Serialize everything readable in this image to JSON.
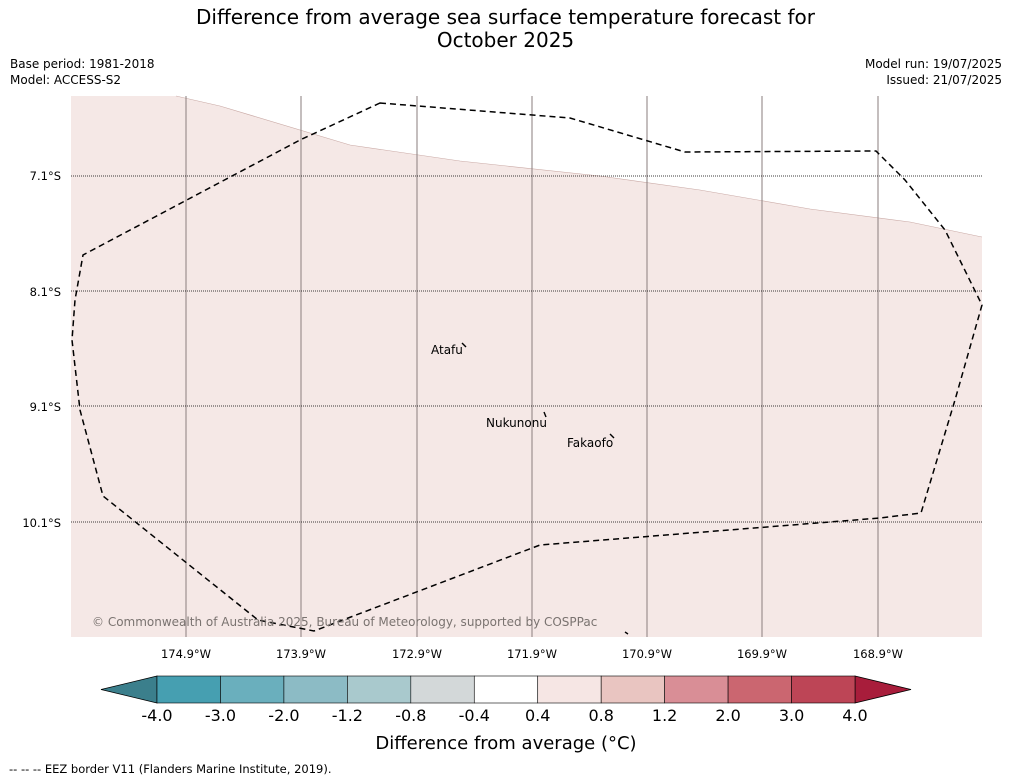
{
  "title_line1": "Difference from average sea surface temperature forecast for",
  "title_line2": "October 2025",
  "base_period": "Base period: 1981-2018",
  "model": "Model: ACCESS-S2",
  "model_run": "Model run: 19/07/2025",
  "issued": "Issued: 21/07/2025",
  "lat_labels": [
    "7.1°S",
    "8.1°S",
    "9.1°S",
    "10.1°S"
  ],
  "lon_labels": [
    "174.9°W",
    "173.9°W",
    "172.9°W",
    "171.9°W",
    "170.9°W",
    "169.9°W",
    "168.9°W"
  ],
  "places": [
    "Atafu",
    "Nukunonu",
    "Fakaofo"
  ],
  "copyright": "© Commonwealth of Australia 2025, Bureau of Meteorology, supported by COSPPac",
  "colorbar": {
    "tick_labels": [
      "-4.0",
      "-3.0",
      "-2.0",
      "-1.2",
      "-0.8",
      "-0.4",
      "0.4",
      "0.8",
      "1.2",
      "2.0",
      "3.0",
      "4.0"
    ],
    "colors": [
      "#469fb1",
      "#6aafbd",
      "#8cbbc5",
      "#a9c9cd",
      "#d3d8d9",
      "#ffffff",
      "#f6e6e4",
      "#e9c5c1",
      "#d98e96",
      "#cb6670",
      "#bd4556"
    ],
    "under_color": "#3b7f8c",
    "over_color": "#a81d3b",
    "label": "Difference from average (°C)"
  },
  "map_fill_color": "#f5e8e6",
  "legend_text": "-- -- -- EEZ border V11 (Flanders Marine Institute, 2019)."
}
